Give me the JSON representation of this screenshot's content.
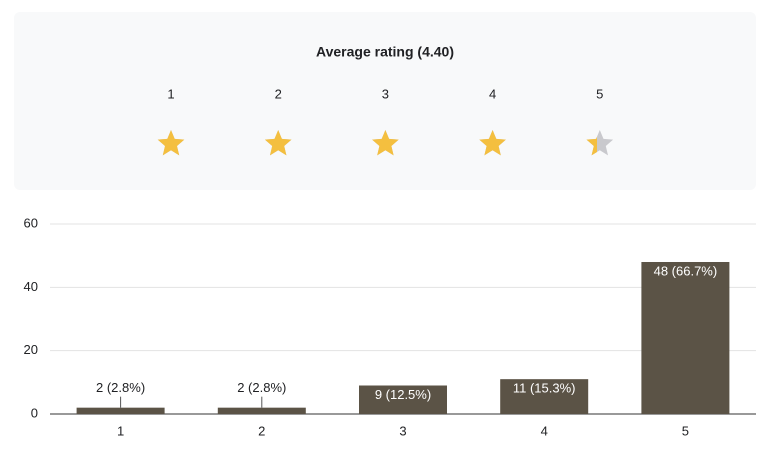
{
  "rating_panel": {
    "title": "Average rating (4.40)",
    "average": 4.4,
    "levels": [
      "1",
      "2",
      "3",
      "4",
      "5"
    ],
    "star_color": "#f4bf3f",
    "empty_color": "#c9c9cd"
  },
  "chart_data": {
    "type": "bar",
    "categories": [
      "1",
      "2",
      "3",
      "4",
      "5"
    ],
    "values": [
      2,
      2,
      9,
      11,
      48
    ],
    "value_labels": [
      "2 (2.8%)",
      "2 (2.8%)",
      "9 (12.5%)",
      "11 (15.3%)",
      "48 (66.7%)"
    ],
    "color": "#5b5346",
    "ylim": [
      0,
      60
    ],
    "yticks": [
      0,
      20,
      40,
      60
    ],
    "grid": true
  }
}
